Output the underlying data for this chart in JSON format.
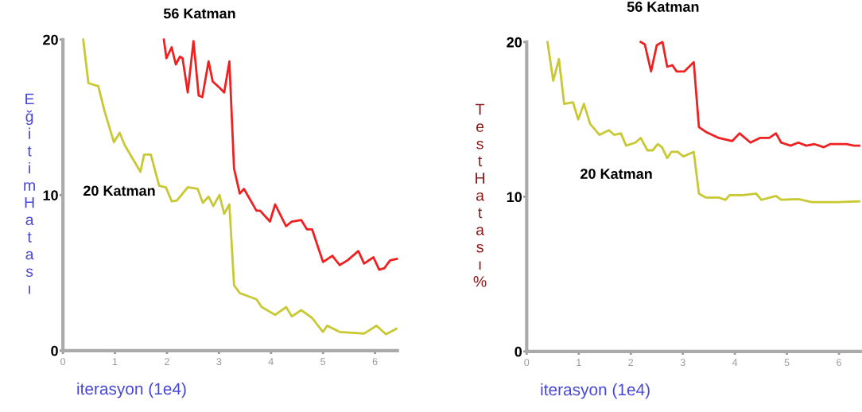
{
  "chart_data": [
    {
      "type": "line",
      "ylabel": "Eğitim Hatası",
      "xlabel": "iterasyon (1e4)",
      "xlim": [
        0,
        6.43
      ],
      "ylim": [
        0,
        20
      ],
      "xticks": [
        0,
        1,
        2,
        3,
        4,
        5,
        6
      ],
      "yticks": [
        0,
        10,
        20
      ],
      "grid": false,
      "legend": false,
      "marker": "none",
      "line_style": "solid",
      "series": [
        {
          "name": "20 Katman",
          "color": "#c8c832",
          "x": [
            0.39,
            0.49,
            0.68,
            0.8,
            0.98,
            1.09,
            1.19,
            1.49,
            1.56,
            1.69,
            1.85,
            1.98,
            2.09,
            2.19,
            2.4,
            2.59,
            2.69,
            2.8,
            2.89,
            3.01,
            3.1,
            3.2,
            3.29,
            3.4,
            3.72,
            3.82,
            4.08,
            4.29,
            4.4,
            4.58,
            4.79,
            5.0,
            5.08,
            5.32,
            5.79,
            6.03,
            6.21,
            6.41
          ],
          "values": [
            20,
            17.2,
            17.0,
            15.4,
            13.4,
            14.0,
            13.2,
            11.5,
            12.6,
            12.6,
            10.6,
            10.5,
            9.6,
            9.65,
            10.5,
            10.4,
            9.5,
            9.9,
            9.3,
            10.0,
            8.8,
            9.4,
            4.2,
            3.7,
            3.3,
            2.8,
            2.3,
            2.8,
            2.2,
            2.6,
            2.1,
            1.2,
            1.6,
            1.2,
            1.1,
            1.6,
            1.05,
            1.4
          ]
        },
        {
          "name": "56 Katman",
          "color": "#f02020",
          "x": [
            1.94,
            1.99,
            2.09,
            2.17,
            2.25,
            2.3,
            2.4,
            2.51,
            2.61,
            2.68,
            2.8,
            2.88,
            3.01,
            3.1,
            3.2,
            3.29,
            3.4,
            3.48,
            3.72,
            3.79,
            3.98,
            4.08,
            4.29,
            4.4,
            4.58,
            4.69,
            4.79,
            5.0,
            5.18,
            5.32,
            5.47,
            5.68,
            5.79,
            5.97,
            6.08,
            6.18,
            6.29,
            6.42
          ],
          "values": [
            20,
            18.8,
            19.5,
            18.4,
            18.9,
            18.8,
            16.6,
            19.9,
            16.4,
            16.3,
            18.6,
            17.3,
            16.9,
            16.6,
            18.6,
            11.7,
            10.1,
            10.4,
            9.0,
            9.0,
            8.3,
            9.4,
            8.0,
            8.3,
            8.4,
            7.8,
            7.8,
            5.7,
            6.1,
            5.5,
            5.8,
            6.4,
            5.6,
            6.0,
            5.2,
            5.3,
            5.8,
            5.9
          ]
        }
      ]
    },
    {
      "type": "line",
      "ylabel": "Test Hatası %",
      "xlabel": "iterasyon (1e4)",
      "xlim": [
        0,
        6.41
      ],
      "ylim": [
        0,
        20
      ],
      "xticks": [
        0,
        1,
        2,
        3,
        4,
        5,
        6
      ],
      "yticks": [
        0,
        10,
        20
      ],
      "grid": false,
      "legend": false,
      "marker": "none",
      "line_style": "solid",
      "series": [
        {
          "name": "20 Katman",
          "color": "#c8c832",
          "x": [
            0.4,
            0.51,
            0.62,
            0.72,
            0.89,
            0.99,
            1.1,
            1.22,
            1.4,
            1.58,
            1.68,
            1.81,
            1.91,
            2.09,
            2.19,
            2.32,
            2.42,
            2.52,
            2.6,
            2.7,
            2.78,
            2.9,
            3.01,
            3.21,
            3.31,
            3.44,
            3.69,
            3.82,
            3.9,
            4.15,
            4.41,
            4.51,
            4.79,
            4.89,
            5.22,
            5.48,
            5.98,
            6.39
          ],
          "values": [
            20,
            17.5,
            18.9,
            16.0,
            16.1,
            15.0,
            16.0,
            14.7,
            14.0,
            14.3,
            14.0,
            14.1,
            13.3,
            13.5,
            13.8,
            13.0,
            13.0,
            13.4,
            13.2,
            12.5,
            12.9,
            12.9,
            12.6,
            12.9,
            10.2,
            9.95,
            9.95,
            9.8,
            10.1,
            10.1,
            10.2,
            9.8,
            10.05,
            9.8,
            9.85,
            9.65,
            9.65,
            9.7
          ]
        },
        {
          "name": "56 Katman",
          "color": "#f02020",
          "x": [
            2.19,
            2.27,
            2.39,
            2.5,
            2.61,
            2.7,
            2.8,
            2.88,
            3.03,
            3.21,
            3.31,
            3.44,
            3.69,
            3.95,
            4.09,
            4.3,
            4.48,
            4.66,
            4.79,
            4.89,
            5.07,
            5.22,
            5.37,
            5.53,
            5.71,
            5.83,
            6.14,
            6.29,
            6.39
          ],
          "values": [
            20,
            19.85,
            18.1,
            19.8,
            20,
            18.4,
            18.5,
            18.1,
            18.1,
            18.7,
            14.5,
            14.2,
            13.8,
            13.6,
            14.1,
            13.5,
            13.8,
            13.8,
            14.1,
            13.5,
            13.3,
            13.5,
            13.3,
            13.4,
            13.2,
            13.4,
            13.4,
            13.3,
            13.3
          ]
        }
      ]
    }
  ]
}
